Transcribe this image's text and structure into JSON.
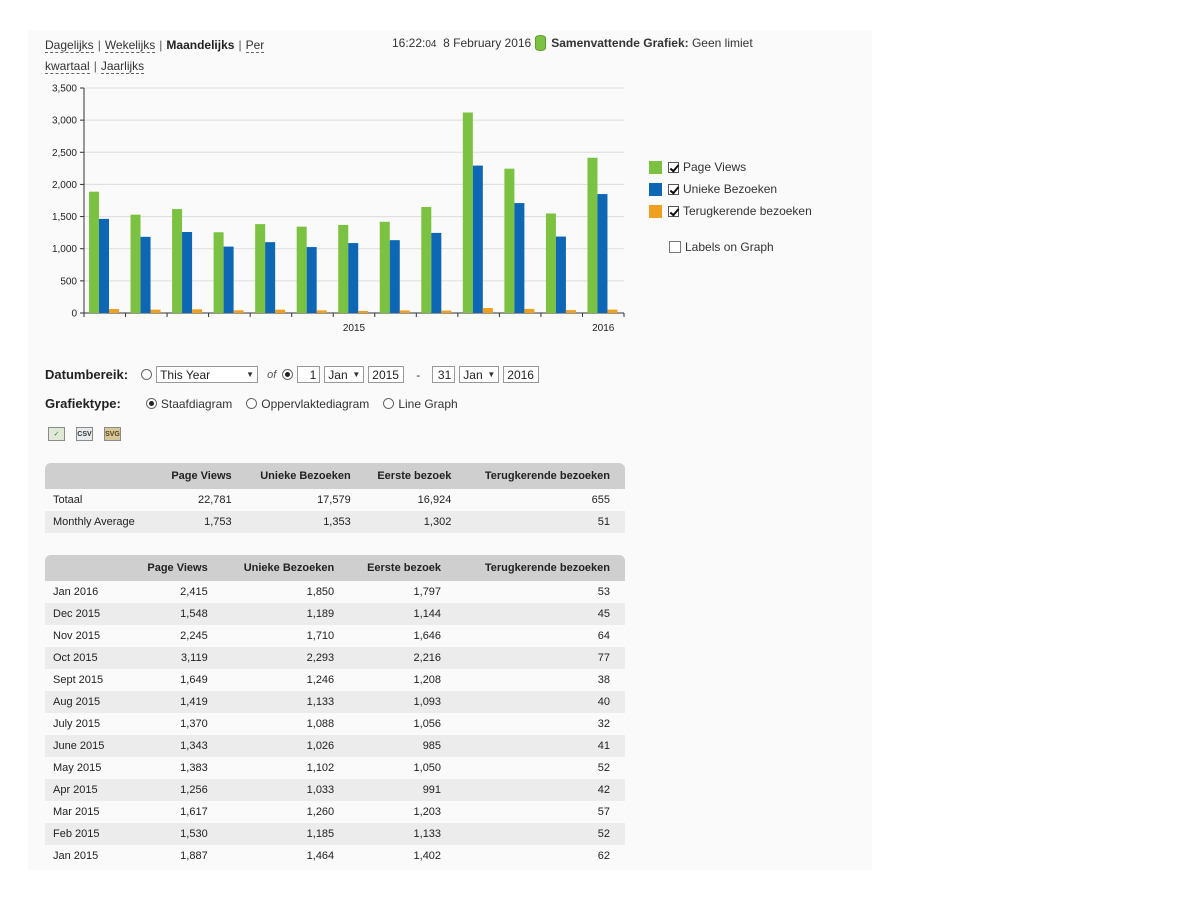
{
  "periods": {
    "daily": "Dagelijks",
    "weekly": "Wekelijks",
    "monthly": "Maandelijks",
    "quarterly": "Per kwartaal",
    "yearly": "Jaarlijks",
    "separator": "|"
  },
  "clock": {
    "time_hm": "16:22:",
    "time_s": "04",
    "date": "8 February 2016",
    "summary_label": "Samenvattende Grafiek:",
    "summary_value": "Geen limiet"
  },
  "colors": {
    "page_views": "#7cc242",
    "unique_visits": "#0d67b4",
    "returning_visits": "#f0a020",
    "grid": "#dddddd",
    "table_header": "#cfcfcf"
  },
  "legend": {
    "items": [
      {
        "label": "Page Views",
        "checked": true
      },
      {
        "label": "Unieke Bezoeken",
        "checked": true
      },
      {
        "label": "Terugkerende bezoeken",
        "checked": true
      }
    ],
    "labels_on_graph": "Labels on Graph"
  },
  "chart_data": {
    "type": "bar",
    "categories": [
      "Jan 2015",
      "Feb 2015",
      "Mar 2015",
      "Apr 2015",
      "May 2015",
      "June 2015",
      "July 2015",
      "Aug 2015",
      "Sept 2015",
      "Oct 2015",
      "Nov 2015",
      "Dec 2015",
      "Jan 2016"
    ],
    "series": [
      {
        "name": "Page Views",
        "values": [
          1887,
          1530,
          1617,
          1256,
          1383,
          1343,
          1370,
          1419,
          1649,
          3119,
          2245,
          1548,
          2415
        ]
      },
      {
        "name": "Unieke Bezoeken",
        "values": [
          1464,
          1185,
          1260,
          1033,
          1102,
          1026,
          1088,
          1133,
          1246,
          2293,
          1710,
          1189,
          1850
        ]
      },
      {
        "name": "Terugkerende bezoeken",
        "values": [
          62,
          52,
          57,
          42,
          52,
          41,
          32,
          40,
          38,
          77,
          64,
          45,
          53
        ]
      }
    ],
    "ylim": [
      0,
      3500
    ],
    "yticks": [
      0,
      500,
      1000,
      1500,
      2000,
      2500,
      3000,
      3500
    ],
    "ytick_labels": [
      "0",
      "500",
      "1,000",
      "1,500",
      "2,000",
      "2,500",
      "3,000",
      "3,500"
    ],
    "xtick_labels": [
      {
        "label": "2015",
        "index": 6
      },
      {
        "label": "2016",
        "index": 12
      }
    ],
    "grid": true,
    "legend_position": "right"
  },
  "form": {
    "range_label": "Datumbereik:",
    "preset_value": "This Year",
    "of_label": "of",
    "from_day": "1",
    "from_month": "Jan",
    "from_year": "2015",
    "dash": "-",
    "to_day": "31",
    "to_month": "Jan",
    "to_year": "2016",
    "type_label": "Grafiektype:",
    "type_bar": "Staafdiagram",
    "type_area": "Oppervlaktediagram",
    "type_line": "Line Graph"
  },
  "export": {
    "csv": "CSV",
    "svg": "SVG"
  },
  "summary_table": {
    "headers": [
      "",
      "Page Views",
      "Unieke Bezoeken",
      "Eerste bezoek",
      "Terugkerende bezoeken"
    ],
    "rows": [
      [
        "Totaal",
        "22,781",
        "17,579",
        "16,924",
        "655"
      ],
      [
        "Monthly Average",
        "1,753",
        "1,353",
        "1,302",
        "51"
      ]
    ]
  },
  "monthly_table": {
    "headers": [
      "",
      "Page Views",
      "Unieke Bezoeken",
      "Eerste bezoek",
      "Terugkerende bezoeken"
    ],
    "rows": [
      [
        "Jan 2016",
        "2,415",
        "1,850",
        "1,797",
        "53"
      ],
      [
        "Dec 2015",
        "1,548",
        "1,189",
        "1,144",
        "45"
      ],
      [
        "Nov 2015",
        "2,245",
        "1,710",
        "1,646",
        "64"
      ],
      [
        "Oct 2015",
        "3,119",
        "2,293",
        "2,216",
        "77"
      ],
      [
        "Sept 2015",
        "1,649",
        "1,246",
        "1,208",
        "38"
      ],
      [
        "Aug 2015",
        "1,419",
        "1,133",
        "1,093",
        "40"
      ],
      [
        "July 2015",
        "1,370",
        "1,088",
        "1,056",
        "32"
      ],
      [
        "June 2015",
        "1,343",
        "1,026",
        "985",
        "41"
      ],
      [
        "May 2015",
        "1,383",
        "1,102",
        "1,050",
        "52"
      ],
      [
        "Apr 2015",
        "1,256",
        "1,033",
        "991",
        "42"
      ],
      [
        "Mar 2015",
        "1,617",
        "1,260",
        "1,203",
        "57"
      ],
      [
        "Feb 2015",
        "1,530",
        "1,185",
        "1,133",
        "52"
      ],
      [
        "Jan 2015",
        "1,887",
        "1,464",
        "1,402",
        "62"
      ]
    ]
  }
}
